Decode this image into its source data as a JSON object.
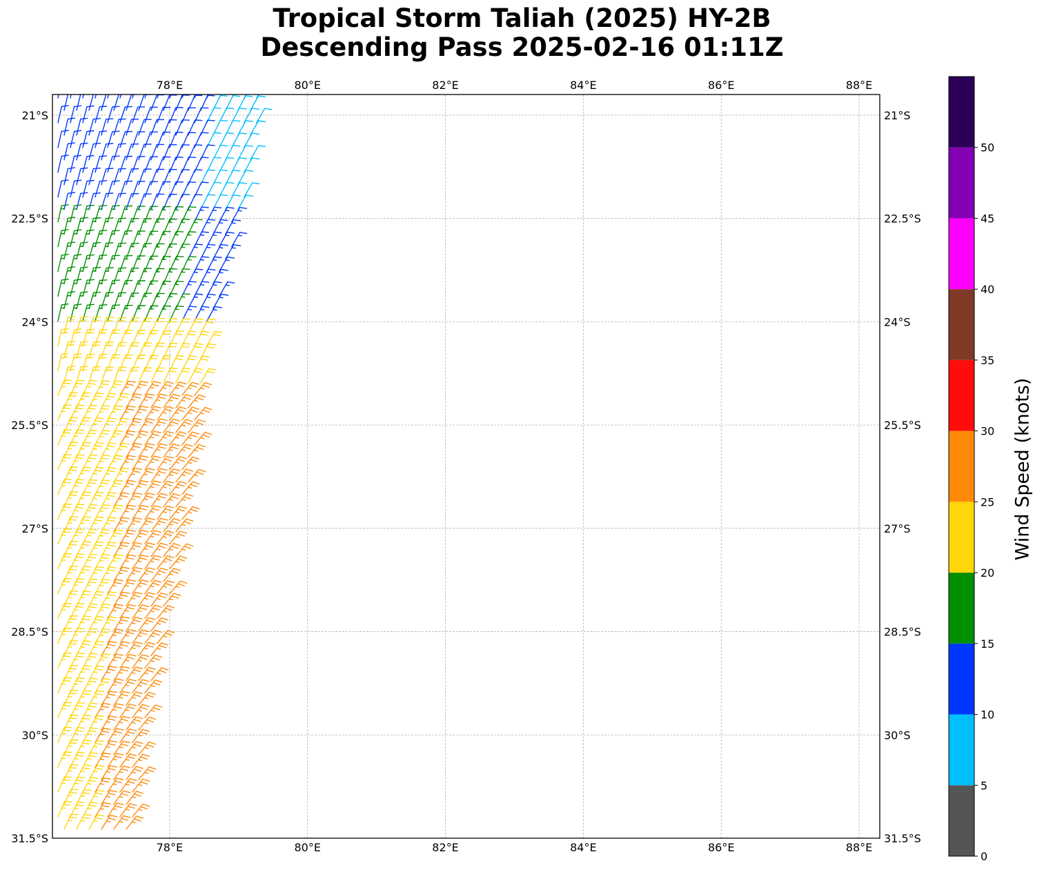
{
  "title": {
    "line1": "Tropical Storm Taliah (2025) HY-2B",
    "line2": "Descending Pass 2025-02-16 01:11Z"
  },
  "map": {
    "lon_range": [
      76.3,
      88.3
    ],
    "lat_range": [
      -31.5,
      -20.7
    ],
    "lon_ticks": [
      78,
      80,
      82,
      84,
      86,
      88
    ],
    "lon_tick_labels": [
      "78°E",
      "80°E",
      "82°E",
      "84°E",
      "86°E",
      "88°E"
    ],
    "lat_ticks": [
      -21,
      -22.5,
      -24,
      -25.5,
      -27,
      -28.5,
      -30,
      -31.5
    ],
    "lat_tick_labels": [
      "21°S",
      "22.5°S",
      "24°S",
      "25.5°S",
      "27°S",
      "28.5°S",
      "30°S",
      "31.5°S"
    ],
    "gridlines": true,
    "gridline_color": "#b0b0b0"
  },
  "colorbar": {
    "label": "Wind Speed (knots)",
    "bounds": [
      0,
      5,
      10,
      15,
      20,
      25,
      30,
      35,
      40,
      45,
      50,
      55
    ],
    "tick_labels": [
      "0",
      "5",
      "10",
      "15",
      "20",
      "25",
      "30",
      "35",
      "40",
      "45",
      "50"
    ],
    "colors": [
      "#555555",
      "#00bfff",
      "#0037ff",
      "#008f00",
      "#ffd60a",
      "#ff8a0a",
      "#ff0d0d",
      "#803a28",
      "#ff00ff",
      "#8400b4",
      "#2c005a"
    ]
  },
  "wind_field": {
    "swath_left_edge_lon": 76.3,
    "swath_right_edge": [
      {
        "lat": -20.9,
        "lon": 79.3
      },
      {
        "lat": -22.2,
        "lon": 79.1
      },
      {
        "lat": -24.2,
        "lon": 78.6
      },
      {
        "lat": -27.0,
        "lon": 78.2
      },
      {
        "lat": -29.5,
        "lon": 77.7
      },
      {
        "lat": -31.3,
        "lon": 77.5
      }
    ],
    "speed_regions": [
      {
        "lat_from": -20.7,
        "lat_to": -22.5,
        "west_knots": 12,
        "mid_knots": 12,
        "east_knots": 8
      },
      {
        "lat_from": -22.5,
        "lat_to": -24.0,
        "west_knots": 17,
        "mid_knots": 17,
        "east_knots": 13
      },
      {
        "lat_from": -24.0,
        "lat_to": -25.0,
        "west_knots": 22,
        "mid_knots": 22,
        "east_knots": 22
      },
      {
        "lat_from": -25.0,
        "lat_to": -31.5,
        "west_knots": 23,
        "mid_knots": 26,
        "east_knots": 27
      }
    ]
  }
}
